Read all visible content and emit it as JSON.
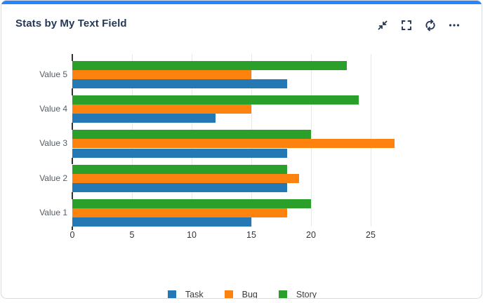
{
  "card": {
    "title": "Stats by My Text Field",
    "accent_color": "#2684FF",
    "title_color": "#253858",
    "border_color": "#d7dbe2"
  },
  "toolbar": {
    "icon_color": "#253858",
    "icons": [
      {
        "name": "collapse-icon"
      },
      {
        "name": "expand-icon"
      },
      {
        "name": "refresh-icon"
      },
      {
        "name": "more-icon"
      }
    ]
  },
  "chart_data": {
    "type": "bar",
    "orientation": "horizontal",
    "title": "Stats by My Text Field",
    "categories": [
      "Value 5",
      "Value 4",
      "Value 3",
      "Value 2",
      "Value 1"
    ],
    "series": [
      {
        "name": "Task",
        "color": "#2478b4",
        "values": [
          18,
          12,
          18,
          18,
          15
        ]
      },
      {
        "name": "Bug",
        "color": "#fd820e",
        "values": [
          15,
          15,
          27,
          19,
          18
        ]
      },
      {
        "name": "Story",
        "color": "#2aa02a",
        "values": [
          23,
          24,
          20,
          18,
          20
        ]
      }
    ],
    "group_row_order_top_to_bottom": [
      "Story",
      "Bug",
      "Task"
    ],
    "x_ticks": [
      0,
      5,
      10,
      15,
      20,
      25
    ],
    "xlim": [
      0,
      29.5
    ],
    "grid": true,
    "legend_position": "bottom",
    "label_color": "#555c66",
    "tick_color": "#333333",
    "gridline_color": "#e8e8e8"
  }
}
